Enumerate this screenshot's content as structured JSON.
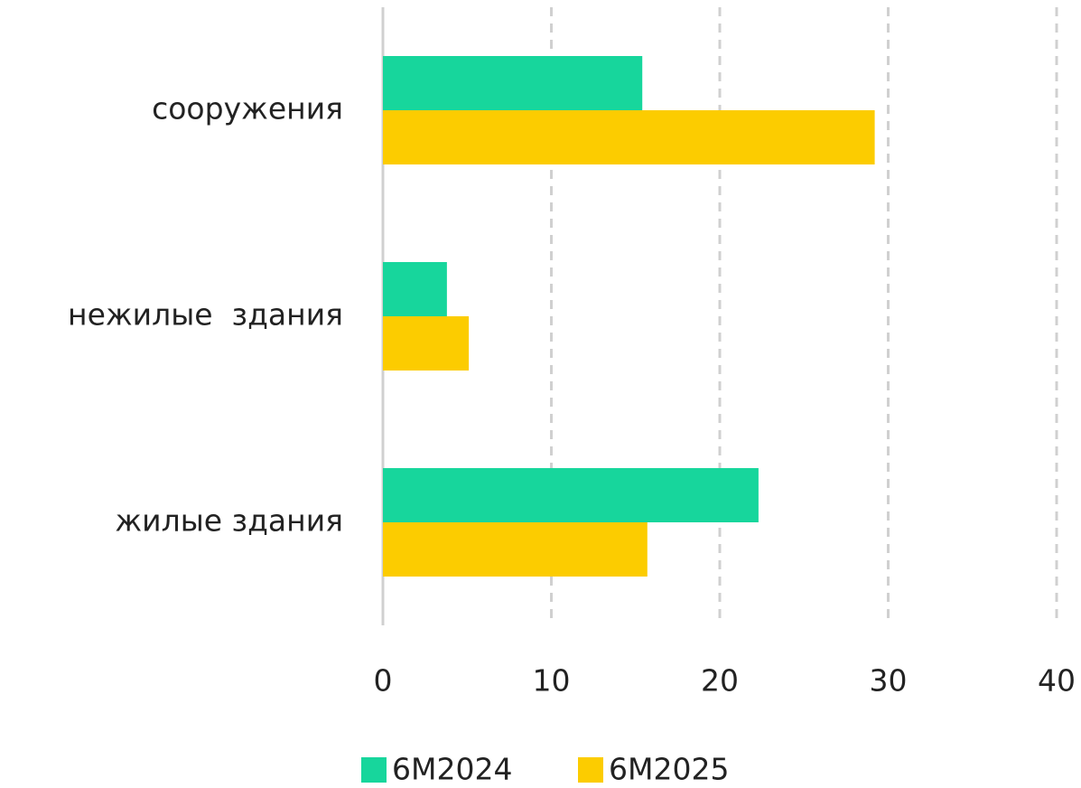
{
  "chart_data": {
    "type": "barh",
    "categories": [
      "сооружения",
      "нежилые  здания",
      "жилые здания"
    ],
    "series": [
      {
        "name": "6M2024",
        "color": "#17d69c",
        "values": [
          15.4,
          3.8,
          22.3
        ]
      },
      {
        "name": "6M2025",
        "color": "#fccc00",
        "values": [
          29.2,
          5.1,
          15.7
        ]
      }
    ],
    "xlim": [
      0,
      40
    ],
    "xticks": [
      0,
      10,
      20,
      30,
      40
    ],
    "grid": true,
    "legend": "bottom"
  }
}
